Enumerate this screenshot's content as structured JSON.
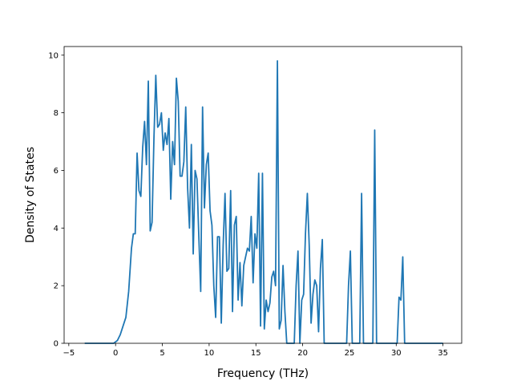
{
  "chart_data": {
    "type": "line",
    "title": "",
    "xlabel": "Frequency (THz)",
    "ylabel": "Density of States",
    "xlim": [
      -5.5,
      37
    ],
    "ylim": [
      0,
      10.3
    ],
    "xticks": [
      -5,
      0,
      5,
      10,
      15,
      20,
      25,
      30,
      35
    ],
    "yticks": [
      0,
      2,
      4,
      6,
      8,
      10
    ],
    "grid": false,
    "series": [
      {
        "color": "#1f77b4",
        "points": [
          [
            -3.3,
            0
          ],
          [
            -0.2,
            0
          ],
          [
            0.2,
            0.1
          ],
          [
            0.5,
            0.3
          ],
          [
            0.8,
            0.6
          ],
          [
            1.1,
            0.9
          ],
          [
            1.4,
            1.8
          ],
          [
            1.7,
            3.3
          ],
          [
            1.9,
            3.8
          ],
          [
            2.1,
            3.8
          ],
          [
            2.3,
            6.6
          ],
          [
            2.5,
            5.3
          ],
          [
            2.7,
            5.1
          ],
          [
            2.9,
            6.8
          ],
          [
            3.1,
            7.7
          ],
          [
            3.3,
            6.2
          ],
          [
            3.5,
            9.1
          ],
          [
            3.7,
            3.9
          ],
          [
            3.9,
            4.2
          ],
          [
            4.1,
            7.1
          ],
          [
            4.3,
            9.3
          ],
          [
            4.5,
            7.5
          ],
          [
            4.7,
            7.6
          ],
          [
            4.9,
            8.0
          ],
          [
            5.1,
            6.7
          ],
          [
            5.3,
            7.3
          ],
          [
            5.5,
            6.9
          ],
          [
            5.7,
            7.8
          ],
          [
            5.9,
            5.0
          ],
          [
            6.1,
            7.0
          ],
          [
            6.3,
            6.2
          ],
          [
            6.5,
            9.2
          ],
          [
            6.7,
            8.4
          ],
          [
            6.9,
            5.8
          ],
          [
            7.1,
            5.8
          ],
          [
            7.3,
            6.3
          ],
          [
            7.5,
            8.2
          ],
          [
            7.7,
            5.4
          ],
          [
            7.9,
            4.0
          ],
          [
            8.1,
            6.9
          ],
          [
            8.3,
            3.1
          ],
          [
            8.5,
            6.0
          ],
          [
            8.7,
            5.7
          ],
          [
            8.9,
            3.7
          ],
          [
            9.1,
            1.8
          ],
          [
            9.3,
            8.2
          ],
          [
            9.5,
            4.7
          ],
          [
            9.7,
            6.2
          ],
          [
            9.9,
            6.6
          ],
          [
            10.1,
            4.6
          ],
          [
            10.3,
            4.1
          ],
          [
            10.5,
            2.0
          ],
          [
            10.7,
            0.9
          ],
          [
            10.9,
            3.7
          ],
          [
            11.1,
            3.7
          ],
          [
            11.3,
            0.7
          ],
          [
            11.5,
            3.4
          ],
          [
            11.7,
            5.2
          ],
          [
            11.9,
            2.5
          ],
          [
            12.1,
            2.6
          ],
          [
            12.3,
            5.3
          ],
          [
            12.5,
            1.1
          ],
          [
            12.7,
            4.1
          ],
          [
            12.9,
            4.4
          ],
          [
            13.1,
            1.5
          ],
          [
            13.3,
            2.8
          ],
          [
            13.5,
            1.3
          ],
          [
            13.7,
            2.7
          ],
          [
            13.9,
            3.0
          ],
          [
            14.1,
            3.3
          ],
          [
            14.3,
            3.2
          ],
          [
            14.5,
            4.4
          ],
          [
            14.7,
            2.1
          ],
          [
            14.9,
            3.8
          ],
          [
            15.1,
            3.3
          ],
          [
            15.3,
            5.9
          ],
          [
            15.5,
            0.6
          ],
          [
            15.7,
            5.9
          ],
          [
            15.9,
            0.5
          ],
          [
            16.1,
            1.5
          ],
          [
            16.3,
            1.1
          ],
          [
            16.5,
            1.4
          ],
          [
            16.7,
            2.3
          ],
          [
            16.9,
            2.5
          ],
          [
            17.1,
            2.0
          ],
          [
            17.3,
            9.8
          ],
          [
            17.5,
            0.5
          ],
          [
            17.7,
            0.8
          ],
          [
            17.9,
            2.7
          ],
          [
            18.1,
            1.1
          ],
          [
            18.3,
            0.0
          ],
          [
            19.1,
            0.0
          ],
          [
            19.3,
            2.0
          ],
          [
            19.5,
            3.2
          ],
          [
            19.7,
            0.0
          ],
          [
            19.9,
            1.5
          ],
          [
            20.1,
            1.7
          ],
          [
            20.3,
            3.8
          ],
          [
            20.5,
            5.2
          ],
          [
            20.7,
            3.4
          ],
          [
            20.9,
            0.7
          ],
          [
            21.1,
            1.7
          ],
          [
            21.3,
            2.2
          ],
          [
            21.5,
            2.0
          ],
          [
            21.7,
            0.4
          ],
          [
            21.9,
            2.6
          ],
          [
            22.1,
            3.6
          ],
          [
            22.3,
            0.0
          ],
          [
            22.5,
            0.0
          ],
          [
            24.7,
            0.0
          ],
          [
            24.9,
            2.0
          ],
          [
            25.1,
            3.2
          ],
          [
            25.3,
            0.0
          ],
          [
            26.1,
            0.0
          ],
          [
            26.3,
            5.2
          ],
          [
            26.5,
            0.0
          ],
          [
            27.5,
            0.0
          ],
          [
            27.7,
            7.4
          ],
          [
            27.9,
            0.0
          ],
          [
            30.1,
            0.0
          ],
          [
            30.3,
            1.6
          ],
          [
            30.5,
            1.5
          ],
          [
            30.7,
            3.0
          ],
          [
            30.9,
            0.0
          ],
          [
            35.0,
            0.0
          ]
        ]
      }
    ]
  }
}
